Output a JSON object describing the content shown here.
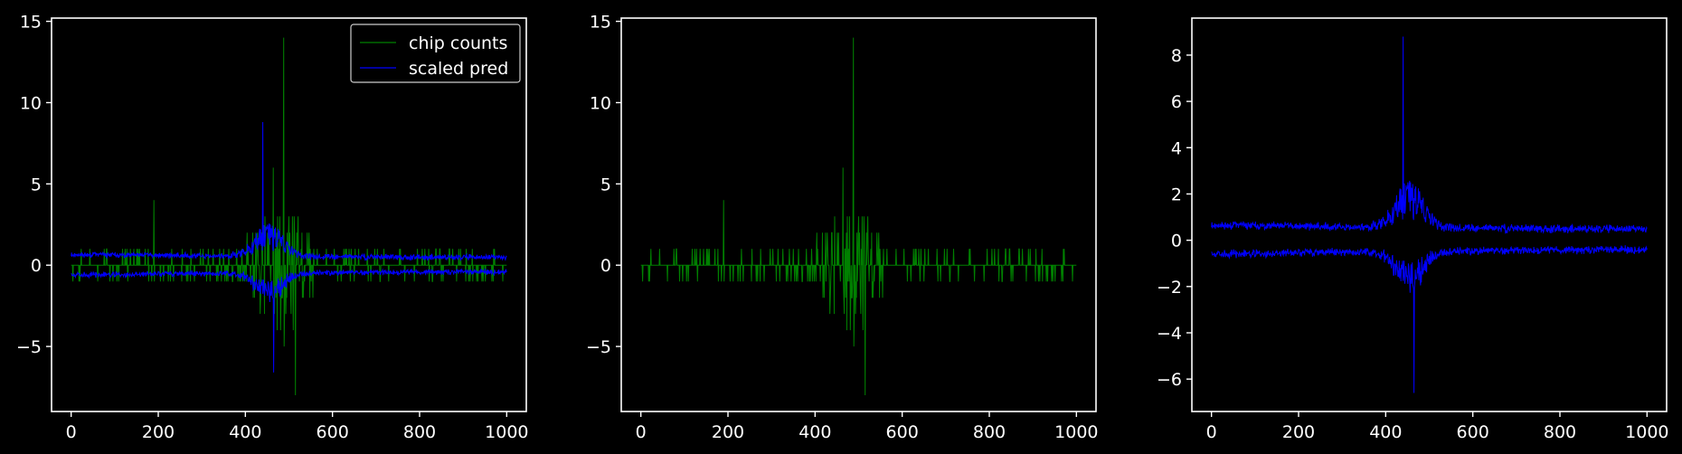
{
  "colors": {
    "background": "#000000",
    "axes": "#ffffff",
    "counts": "#008000",
    "pred": "#0000ff"
  },
  "chart_data": [
    {
      "type": "line",
      "panel": 1,
      "xlim": [
        -45,
        1045
      ],
      "ylim": [
        -9,
        15.2
      ],
      "xticks": [
        0,
        200,
        400,
        600,
        800,
        1000
      ],
      "yticks": [
        -5,
        0,
        5,
        10,
        15
      ],
      "xtick_labels": [
        "0",
        "200",
        "400",
        "600",
        "800",
        "1000"
      ],
      "ytick_labels": [
        "−5",
        "0",
        "5",
        "10",
        "15"
      ],
      "legend": {
        "placement": "top-right",
        "entries": [
          "chip counts",
          "scaled pred"
        ]
      },
      "series": [
        {
          "name": "chip counts",
          "color": "#008000",
          "kind": "counts",
          "x_range": [
            0,
            1000
          ],
          "y_range": [
            -8,
            14
          ],
          "peaks": [
            {
              "x": 488,
              "y": 14
            },
            {
              "x": 515,
              "y": -8
            },
            {
              "x": 190,
              "y": 4
            }
          ]
        },
        {
          "name": "scaled pred",
          "color": "#0000ff",
          "kind": "pred",
          "x_range": [
            0,
            1000
          ],
          "y_range": [
            -6.6,
            8.8
          ],
          "peaks": [
            {
              "x": 440,
              "y": 8.8
            },
            {
              "x": 465,
              "y": -6.6
            }
          ]
        }
      ]
    },
    {
      "type": "line",
      "panel": 2,
      "xlim": [
        -45,
        1045
      ],
      "ylim": [
        -9,
        15.2
      ],
      "xticks": [
        0,
        200,
        400,
        600,
        800,
        1000
      ],
      "yticks": [
        -5,
        0,
        5,
        10,
        15
      ],
      "xtick_labels": [
        "0",
        "200",
        "400",
        "600",
        "800",
        "1000"
      ],
      "ytick_labels": [
        "−5",
        "0",
        "5",
        "10",
        "15"
      ],
      "series": [
        {
          "color": "#008000",
          "kind": "counts",
          "x_range": [
            0,
            1000
          ],
          "y_range": [
            -8,
            14
          ],
          "peaks": [
            {
              "x": 488,
              "y": 14
            },
            {
              "x": 515,
              "y": -8
            },
            {
              "x": 190,
              "y": 4
            }
          ]
        }
      ]
    },
    {
      "type": "line",
      "panel": 3,
      "xlim": [
        -45,
        1045
      ],
      "ylim": [
        -7.4,
        9.6
      ],
      "xticks": [
        0,
        200,
        400,
        600,
        800,
        1000
      ],
      "yticks": [
        -6,
        -4,
        -2,
        0,
        2,
        4,
        6,
        8
      ],
      "xtick_labels": [
        "0",
        "200",
        "400",
        "600",
        "800",
        "1000"
      ],
      "ytick_labels": [
        "−6",
        "−4",
        "−2",
        "0",
        "2",
        "4",
        "6",
        "8"
      ],
      "series": [
        {
          "color": "#0000ff",
          "kind": "pred",
          "x_range": [
            0,
            1000
          ],
          "y_range": [
            -6.6,
            8.8
          ],
          "peaks": [
            {
              "x": 440,
              "y": 8.8
            },
            {
              "x": 465,
              "y": -6.6
            }
          ]
        }
      ]
    }
  ]
}
